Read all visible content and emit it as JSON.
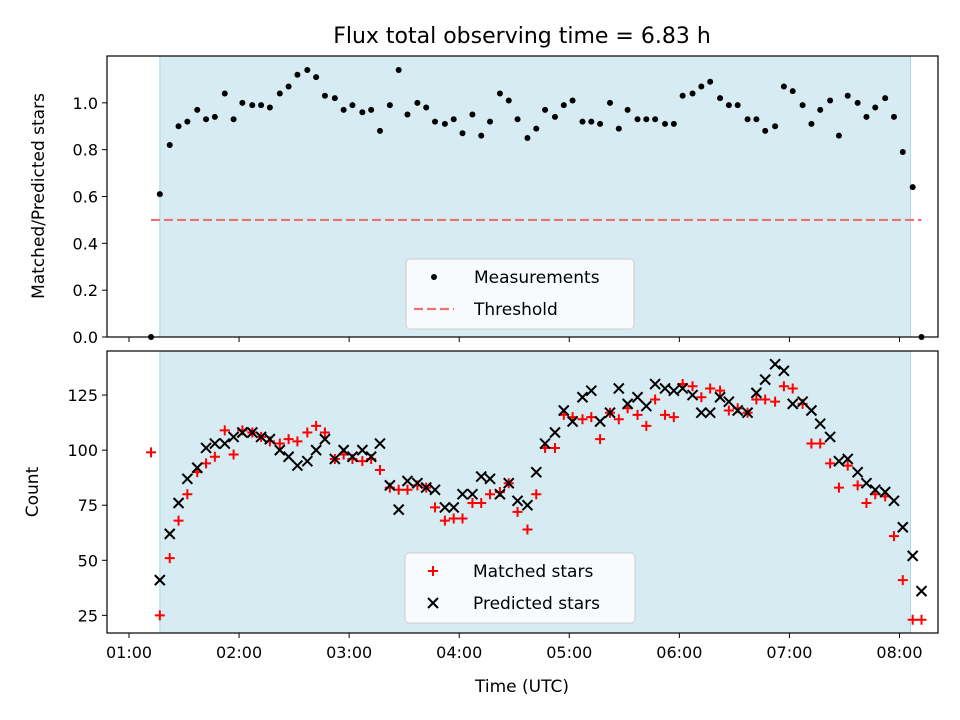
{
  "chart_data": [
    {
      "type": "scatter",
      "title": "Flux total observing time = 6.83 h",
      "xlabel": "",
      "ylabel": "Matched/Predicted stars",
      "ylim": [
        0,
        1.2
      ],
      "yticks": [
        "0.0",
        "0.2",
        "0.4",
        "0.6",
        "0.8",
        "1.0"
      ],
      "ytick_values": [
        0,
        0.2,
        0.4,
        0.6,
        0.8,
        1.0
      ],
      "xlim_hours": [
        0.8,
        8.35
      ],
      "observing_window_hours": [
        1.28,
        8.1
      ],
      "threshold": {
        "y": 0.5,
        "x_range_hours": [
          1.2,
          8.2
        ],
        "color": "#f07070"
      },
      "legend_position": "lower center",
      "legend": [
        "Measurements",
        "Threshold"
      ],
      "series": [
        {
          "name": "Measurements",
          "marker": "dot",
          "color": "#000000",
          "x_hours": [
            1.2,
            1.28,
            1.37,
            1.45,
            1.53,
            1.62,
            1.7,
            1.78,
            1.87,
            1.95,
            2.03,
            2.12,
            2.2,
            2.28,
            2.37,
            2.45,
            2.53,
            2.62,
            2.7,
            2.78,
            2.87,
            2.95,
            3.03,
            3.12,
            3.2,
            3.28,
            3.37,
            3.45,
            3.53,
            3.62,
            3.7,
            3.78,
            3.87,
            3.95,
            4.03,
            4.12,
            4.2,
            4.28,
            4.37,
            4.45,
            4.53,
            4.62,
            4.7,
            4.78,
            4.87,
            4.95,
            5.03,
            5.12,
            5.2,
            5.28,
            5.37,
            5.45,
            5.53,
            5.62,
            5.7,
            5.78,
            5.87,
            5.95,
            6.03,
            6.12,
            6.2,
            6.28,
            6.37,
            6.45,
            6.53,
            6.62,
            6.7,
            6.78,
            6.87,
            6.95,
            7.03,
            7.12,
            7.2,
            7.28,
            7.37,
            7.45,
            7.53,
            7.62,
            7.7,
            7.78,
            7.87,
            7.95,
            8.03,
            8.12,
            8.2
          ],
          "y": [
            0.0,
            0.61,
            0.82,
            0.9,
            0.92,
            0.97,
            0.93,
            0.94,
            1.04,
            0.93,
            1.0,
            0.99,
            0.99,
            0.98,
            1.04,
            1.07,
            1.12,
            1.14,
            1.11,
            1.03,
            1.02,
            0.97,
            0.99,
            0.96,
            0.97,
            0.88,
            0.99,
            1.14,
            0.95,
            1.0,
            0.98,
            0.92,
            0.91,
            0.93,
            0.87,
            0.95,
            0.86,
            0.92,
            1.04,
            1.01,
            0.93,
            0.85,
            0.89,
            0.97,
            0.94,
            0.99,
            1.01,
            0.92,
            0.92,
            0.91,
            1.0,
            0.89,
            0.97,
            0.93,
            0.93,
            0.93,
            0.91,
            0.91,
            1.03,
            1.04,
            1.07,
            1.09,
            1.02,
            0.99,
            0.99,
            0.93,
            0.93,
            0.88,
            0.9,
            1.07,
            1.05,
            0.99,
            0.91,
            0.97,
            1.01,
            0.86,
            1.03,
            1.0,
            0.94,
            0.98,
            1.02,
            0.94,
            0.79,
            0.64,
            0.0
          ]
        }
      ]
    },
    {
      "type": "scatter",
      "title": "",
      "xlabel": "Time (UTC)",
      "ylabel": "Count",
      "ylim": [
        17,
        145
      ],
      "yticks": [
        "25",
        "50",
        "75",
        "100",
        "125"
      ],
      "ytick_values": [
        25,
        50,
        75,
        100,
        125
      ],
      "xlim_hours": [
        0.8,
        8.35
      ],
      "xticks": [
        "01:00",
        "02:00",
        "03:00",
        "04:00",
        "05:00",
        "06:00",
        "07:00",
        "08:00"
      ],
      "xtick_values_hours": [
        1,
        2,
        3,
        4,
        5,
        6,
        7,
        8
      ],
      "observing_window_hours": [
        1.28,
        8.1
      ],
      "legend_position": "lower center",
      "legend": [
        "Matched stars",
        "Predicted stars"
      ],
      "series": [
        {
          "name": "Matched stars",
          "marker": "plus",
          "color": "#ff0000",
          "points": [
            [
              1.2,
              99
            ],
            [
              1.28,
              25
            ],
            [
              1.37,
              51
            ],
            [
              1.45,
              68
            ],
            [
              1.53,
              80
            ],
            [
              1.62,
              90
            ],
            [
              1.7,
              94
            ],
            [
              1.78,
              97
            ],
            [
              1.87,
              109
            ],
            [
              1.95,
              98
            ],
            [
              2.03,
              109
            ],
            [
              2.12,
              108
            ],
            [
              2.2,
              106
            ],
            [
              2.28,
              104
            ],
            [
              2.37,
              103
            ],
            [
              2.45,
              105
            ],
            [
              2.53,
              104
            ],
            [
              2.62,
              108
            ],
            [
              2.7,
              111
            ],
            [
              2.78,
              108
            ],
            [
              2.87,
              96
            ],
            [
              2.95,
              98
            ],
            [
              3.03,
              96
            ],
            [
              3.12,
              95
            ],
            [
              3.2,
              96
            ],
            [
              3.28,
              91
            ],
            [
              3.37,
              83
            ],
            [
              3.45,
              82
            ],
            [
              3.53,
              82
            ],
            [
              3.62,
              84
            ],
            [
              3.7,
              83
            ],
            [
              3.78,
              74
            ],
            [
              3.87,
              68
            ],
            [
              3.95,
              69
            ],
            [
              4.03,
              69
            ],
            [
              4.12,
              76
            ],
            [
              4.2,
              76
            ],
            [
              4.28,
              80
            ],
            [
              4.37,
              81
            ],
            [
              4.45,
              85
            ],
            [
              4.53,
              72
            ],
            [
              4.62,
              64
            ],
            [
              4.7,
              80
            ],
            [
              4.78,
              101
            ],
            [
              4.87,
              101
            ],
            [
              4.95,
              116
            ],
            [
              5.03,
              115
            ],
            [
              5.12,
              114
            ],
            [
              5.2,
              115
            ],
            [
              5.28,
              105
            ],
            [
              5.37,
              117
            ],
            [
              5.45,
              114
            ],
            [
              5.53,
              119
            ],
            [
              5.62,
              116
            ],
            [
              5.7,
              111
            ],
            [
              5.78,
              123
            ],
            [
              5.87,
              116
            ],
            [
              5.95,
              115
            ],
            [
              6.03,
              130
            ],
            [
              6.12,
              129
            ],
            [
              6.2,
              124
            ],
            [
              6.28,
              128
            ],
            [
              6.37,
              127
            ],
            [
              6.45,
              118
            ],
            [
              6.53,
              119
            ],
            [
              6.62,
              117
            ],
            [
              6.7,
              123
            ],
            [
              6.78,
              123
            ],
            [
              6.87,
              122
            ],
            [
              6.95,
              129
            ],
            [
              7.03,
              128
            ],
            [
              7.12,
              121
            ],
            [
              7.2,
              103
            ],
            [
              7.28,
              103
            ],
            [
              7.37,
              94
            ],
            [
              7.45,
              83
            ],
            [
              7.53,
              93
            ],
            [
              7.62,
              84
            ],
            [
              7.7,
              76
            ],
            [
              7.78,
              80
            ],
            [
              7.87,
              79
            ],
            [
              7.95,
              61
            ],
            [
              8.03,
              41
            ],
            [
              8.12,
              23
            ],
            [
              8.2,
              23
            ]
          ]
        },
        {
          "name": "Predicted stars",
          "marker": "x",
          "color": "#000000",
          "points": [
            [
              1.28,
              41
            ],
            [
              1.37,
              62
            ],
            [
              1.45,
              76
            ],
            [
              1.53,
              87
            ],
            [
              1.62,
              92
            ],
            [
              1.7,
              101
            ],
            [
              1.78,
              103
            ],
            [
              1.87,
              103
            ],
            [
              1.95,
              106
            ],
            [
              2.03,
              108
            ],
            [
              2.12,
              108
            ],
            [
              2.2,
              106
            ],
            [
              2.28,
              105
            ],
            [
              2.37,
              100
            ],
            [
              2.45,
              97
            ],
            [
              2.53,
              93
            ],
            [
              2.62,
              95
            ],
            [
              2.7,
              100
            ],
            [
              2.78,
              105
            ],
            [
              2.87,
              96
            ],
            [
              2.95,
              100
            ],
            [
              3.03,
              97
            ],
            [
              3.12,
              100
            ],
            [
              3.2,
              97
            ],
            [
              3.28,
              103
            ],
            [
              3.37,
              84
            ],
            [
              3.45,
              73
            ],
            [
              3.53,
              86
            ],
            [
              3.62,
              85
            ],
            [
              3.7,
              83
            ],
            [
              3.78,
              82
            ],
            [
              3.87,
              74
            ],
            [
              3.95,
              74
            ],
            [
              4.03,
              80
            ],
            [
              4.12,
              80
            ],
            [
              4.2,
              88
            ],
            [
              4.28,
              87
            ],
            [
              4.37,
              80
            ],
            [
              4.45,
              85
            ],
            [
              4.53,
              77
            ],
            [
              4.62,
              75
            ],
            [
              4.7,
              90
            ],
            [
              4.78,
              103
            ],
            [
              4.87,
              108
            ],
            [
              4.95,
              118
            ],
            [
              5.03,
              113
            ],
            [
              5.12,
              124
            ],
            [
              5.2,
              127
            ],
            [
              5.28,
              113
            ],
            [
              5.37,
              117
            ],
            [
              5.45,
              128
            ],
            [
              5.53,
              121
            ],
            [
              5.62,
              124
            ],
            [
              5.7,
              120
            ],
            [
              5.78,
              130
            ],
            [
              5.87,
              128
            ],
            [
              5.95,
              127
            ],
            [
              6.03,
              128
            ],
            [
              6.12,
              125
            ],
            [
              6.2,
              117
            ],
            [
              6.28,
              117
            ],
            [
              6.37,
              124
            ],
            [
              6.45,
              122
            ],
            [
              6.53,
              118
            ],
            [
              6.62,
              117
            ],
            [
              6.7,
              126
            ],
            [
              6.78,
              132
            ],
            [
              6.87,
              139
            ],
            [
              6.95,
              136
            ],
            [
              7.03,
              121
            ],
            [
              7.12,
              122
            ],
            [
              7.2,
              118
            ],
            [
              7.28,
              112
            ],
            [
              7.37,
              106
            ],
            [
              7.45,
              95
            ],
            [
              7.53,
              96
            ],
            [
              7.62,
              90
            ],
            [
              7.7,
              85
            ],
            [
              7.78,
              82
            ],
            [
              7.87,
              81
            ],
            [
              7.95,
              77
            ],
            [
              8.03,
              65
            ],
            [
              8.12,
              52
            ],
            [
              8.2,
              36
            ]
          ]
        }
      ]
    }
  ]
}
